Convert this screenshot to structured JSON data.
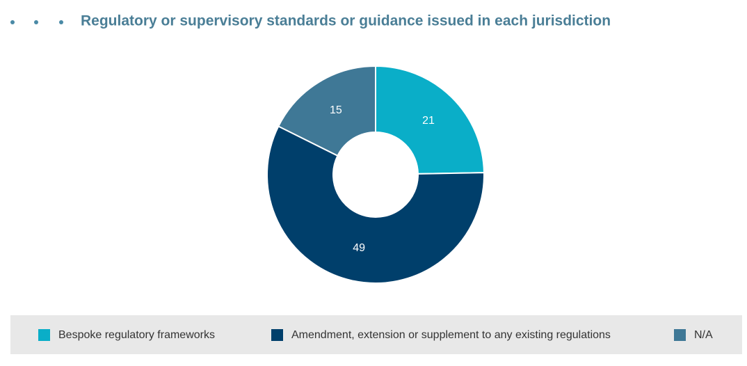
{
  "chart_data": {
    "type": "donut",
    "title": "Regulatory or supervisory standards or guidance issued in each jurisdiction",
    "categories": [
      "Bespoke regulatory frameworks",
      "Amendment, extension or supplement to any existing regulations",
      "N/A"
    ],
    "values": [
      21,
      49,
      15
    ],
    "colors": [
      "#0aaec8",
      "#003f6b",
      "#3f7896"
    ],
    "legend": "bottom"
  }
}
